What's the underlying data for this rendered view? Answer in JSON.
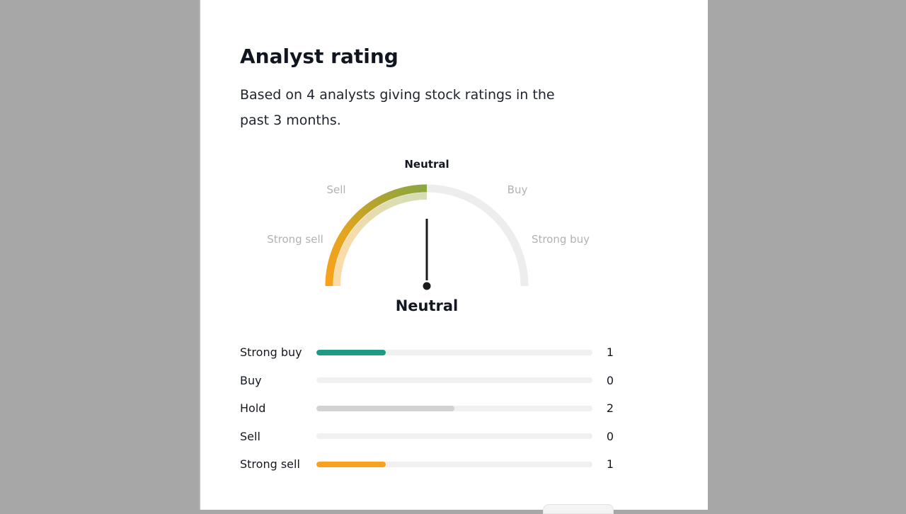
{
  "page": {
    "background_color": "#a7a7a7",
    "card_background_color": "#ffffff"
  },
  "header": {
    "title": "Analyst rating",
    "subtitle_line1": "Based on 4 analysts giving stock ratings in the",
    "subtitle_line2": "past 3 months."
  },
  "gauge": {
    "scale_labels": {
      "strong_sell": "Strong sell",
      "sell": "Sell",
      "neutral": "Neutral",
      "buy": "Buy",
      "strong_buy": "Strong buy"
    },
    "current_rating": "Neutral",
    "needle_angle_deg": 0,
    "gradient": [
      "#f9a11b",
      "#e3a521",
      "#b3a42e",
      "#8ca63e"
    ],
    "track_color": "#ededed",
    "needle_color": "#1b1b1b",
    "active_label_color": "#131722",
    "inactive_label_color": "#b2b2b2"
  },
  "ratings": [
    {
      "label": "Strong buy",
      "value": "1",
      "fill_percent": 25,
      "color": "#1e9a86"
    },
    {
      "label": "Buy",
      "value": "0",
      "fill_percent": 0,
      "color": null
    },
    {
      "label": "Hold",
      "value": "2",
      "fill_percent": 50,
      "color": "#d2d2d2"
    },
    {
      "label": "Sell",
      "value": "0",
      "fill_percent": 0,
      "color": null
    },
    {
      "label": "Strong sell",
      "value": "1",
      "fill_percent": 25,
      "color": "#f9a01d"
    }
  ],
  "chart_data": {
    "type": "bar",
    "title": "Analyst rating",
    "subtitle": "Based on 4 analysts giving stock ratings in the past 3 months.",
    "total_analysts": 4,
    "overall_rating": "Neutral",
    "gauge_scale": [
      "Strong sell",
      "Sell",
      "Neutral",
      "Buy",
      "Strong buy"
    ],
    "gauge_value": "Neutral",
    "categories": [
      "Strong buy",
      "Buy",
      "Hold",
      "Sell",
      "Strong sell"
    ],
    "values": [
      1,
      0,
      2,
      0,
      1
    ],
    "value_range": [
      0,
      4
    ],
    "bar_colors": [
      "#1e9a86",
      null,
      "#d2d2d2",
      null,
      "#f9a01d"
    ],
    "track_color": "#f0f0f0"
  }
}
